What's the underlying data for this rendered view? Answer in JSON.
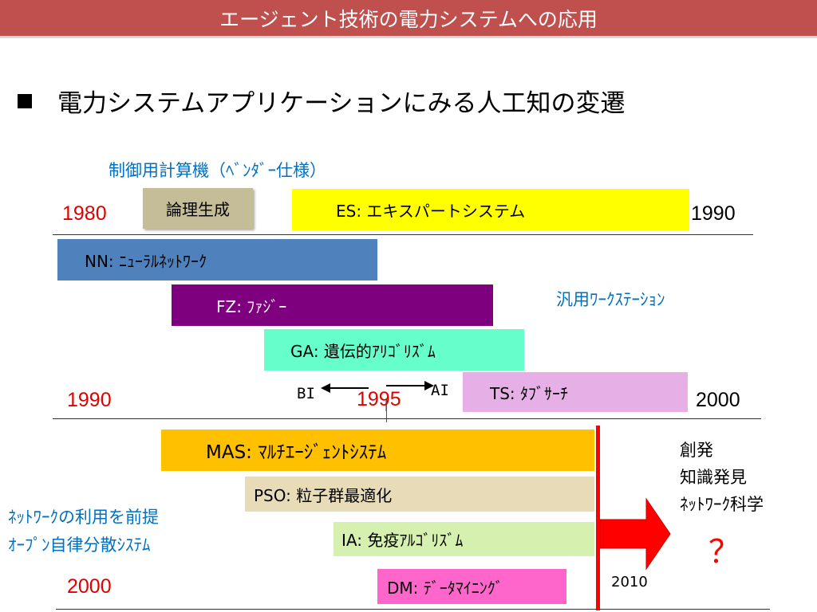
{
  "slide_title": "エージェント技術の電力システムへの応用",
  "heading": "電力システムアプリケーションにみる人工知の変遷",
  "notes": {
    "vendor_computer": "制御用計算機（ﾍﾞﾝﾀﾞｰ仕様）",
    "workstation": "汎用ﾜｰｸｽﾃｰｼｮﾝ",
    "network_line1": "ﾈｯﾄﾜｰｸの利用を前提",
    "network_line2": "ｵｰﾌﾟﾝ自律分散ｼｽﾃﾑ"
  },
  "years": {
    "y1980": "1980",
    "y1990_right": "1990",
    "y1990_left": "1990",
    "y1995": "1995",
    "y2000_right": "2000",
    "y2000_left": "2000",
    "y2010": "2010"
  },
  "arrows": {
    "bi": "BI",
    "ai": "AI"
  },
  "bars": {
    "logic": "論理生成",
    "es": "ES: エキスパートシステム",
    "nn": "NN: ﾆｭｰﾗﾙﾈｯﾄﾜｰｸ",
    "fz": "FZ: ﾌｧｼﾞｰ",
    "ga": "GA: 遺伝的ｱﾘｺﾞﾘｽﾞﾑ",
    "ts": "TS: ﾀﾌﾞｻｰﾁ",
    "mas": "MAS: ﾏﾙﾁｴｰｼﾞｪﾝﾄｼｽﾃﾑ",
    "pso": "PSO: 粒子群最適化",
    "ia": "IA: 免疫ｱﾙｺﾞﾘｽﾞﾑ",
    "dm": "DM: ﾃﾞｰﾀﾏｲﾆﾝｸﾞ"
  },
  "future": {
    "line1": "創発",
    "line2": "知識発見",
    "line3": "ﾈｯﾄﾜｰｸ科学",
    "question": "？"
  },
  "colors": {
    "header": "#c0504d",
    "logic": "#c4bd97",
    "es": "#ffff00",
    "nn": "#4f81bd",
    "fz": "#7f007f",
    "ga": "#66ffcc",
    "ts": "#e6b0e6",
    "mas": "#ffc000",
    "pso": "#e8dcb8",
    "ia": "#d6f0b0",
    "dm": "#ff66cc",
    "accent_red": "#ff0000"
  }
}
